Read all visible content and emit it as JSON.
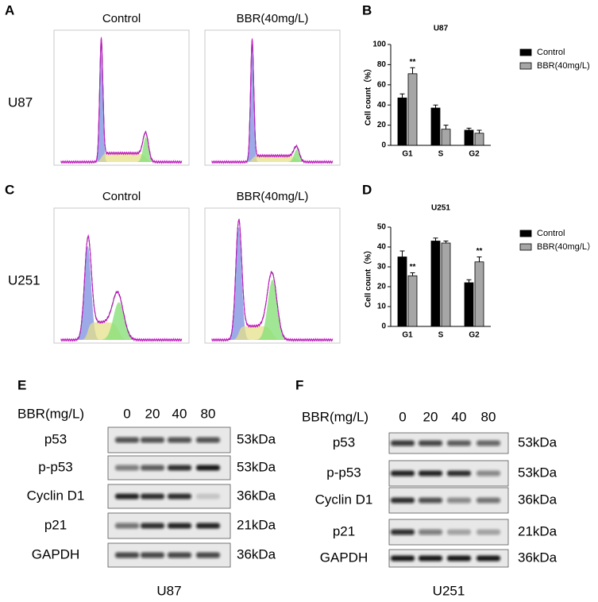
{
  "panel_labels": [
    "A",
    "B",
    "C",
    "D",
    "E",
    "F"
  ],
  "flow": [
    {
      "cell_line": "U87",
      "conditions": [
        "Control",
        "BBR(40mg/L)"
      ]
    },
    {
      "cell_line": "U251",
      "conditions": [
        "Control",
        "BBR(40mg/L)"
      ]
    }
  ],
  "chart_data": [
    {
      "type": "bar",
      "title": "U87",
      "y_label": "Cell count（%）",
      "categories": [
        "G1",
        "S",
        "G2"
      ],
      "series": [
        {
          "name": "Control",
          "color": "#000000",
          "values": [
            47,
            37,
            15
          ],
          "errors": [
            4,
            3,
            2
          ],
          "significance": [
            null,
            null,
            null
          ]
        },
        {
          "name": "BBR(40mg/L)",
          "color": "#a6a6a6",
          "values": [
            71,
            16,
            12
          ],
          "errors": [
            6,
            4,
            3
          ],
          "significance": [
            "**",
            null,
            null
          ]
        }
      ],
      "ylim": [
        0,
        100
      ],
      "yticks": [
        0,
        20,
        40,
        60,
        80,
        100
      ]
    },
    {
      "type": "bar",
      "title": "U251",
      "y_label": "Cell count（%）",
      "categories": [
        "G1",
        "S",
        "G2"
      ],
      "series": [
        {
          "name": "Control",
          "color": "#000000",
          "values": [
            35,
            43,
            22
          ],
          "errors": [
            3,
            1.5,
            1.5
          ],
          "significance": [
            null,
            null,
            null
          ]
        },
        {
          "name": "BBR(40mg/L）",
          "color": "#a6a6a6",
          "values": [
            25.5,
            42,
            32.5
          ],
          "errors": [
            1.5,
            1,
            2.5
          ],
          "significance": [
            "**",
            null,
            "**"
          ]
        }
      ],
      "ylim": [
        0,
        50
      ],
      "yticks": [
        0,
        10,
        20,
        30,
        40,
        50
      ]
    }
  ],
  "blots": [
    {
      "treatment_label": "BBR(mg/L)",
      "doses": [
        0,
        20,
        40,
        80
      ],
      "cell_line": "U87",
      "proteins": [
        {
          "name": "p53",
          "size": "53kDa"
        },
        {
          "name": "p-p53",
          "size": "53kDa"
        },
        {
          "name": "Cyclin D1",
          "size": "36kDa"
        },
        {
          "name": "p21",
          "size": "21kDa"
        },
        {
          "name": "GAPDH",
          "size": "36kDa"
        }
      ]
    },
    {
      "treatment_label": "BBR(mg/L)",
      "doses": [
        0,
        20,
        40,
        80
      ],
      "cell_line": "U251",
      "proteins": [
        {
          "name": "p53",
          "size": "53kDa"
        },
        {
          "name": "p-p53",
          "size": "53kDa"
        },
        {
          "name": "Cyclin D1",
          "size": "36kDa"
        },
        {
          "name": "p21",
          "size": "21kDa"
        },
        {
          "name": "GAPDH",
          "size": "36kDa"
        }
      ]
    }
  ]
}
